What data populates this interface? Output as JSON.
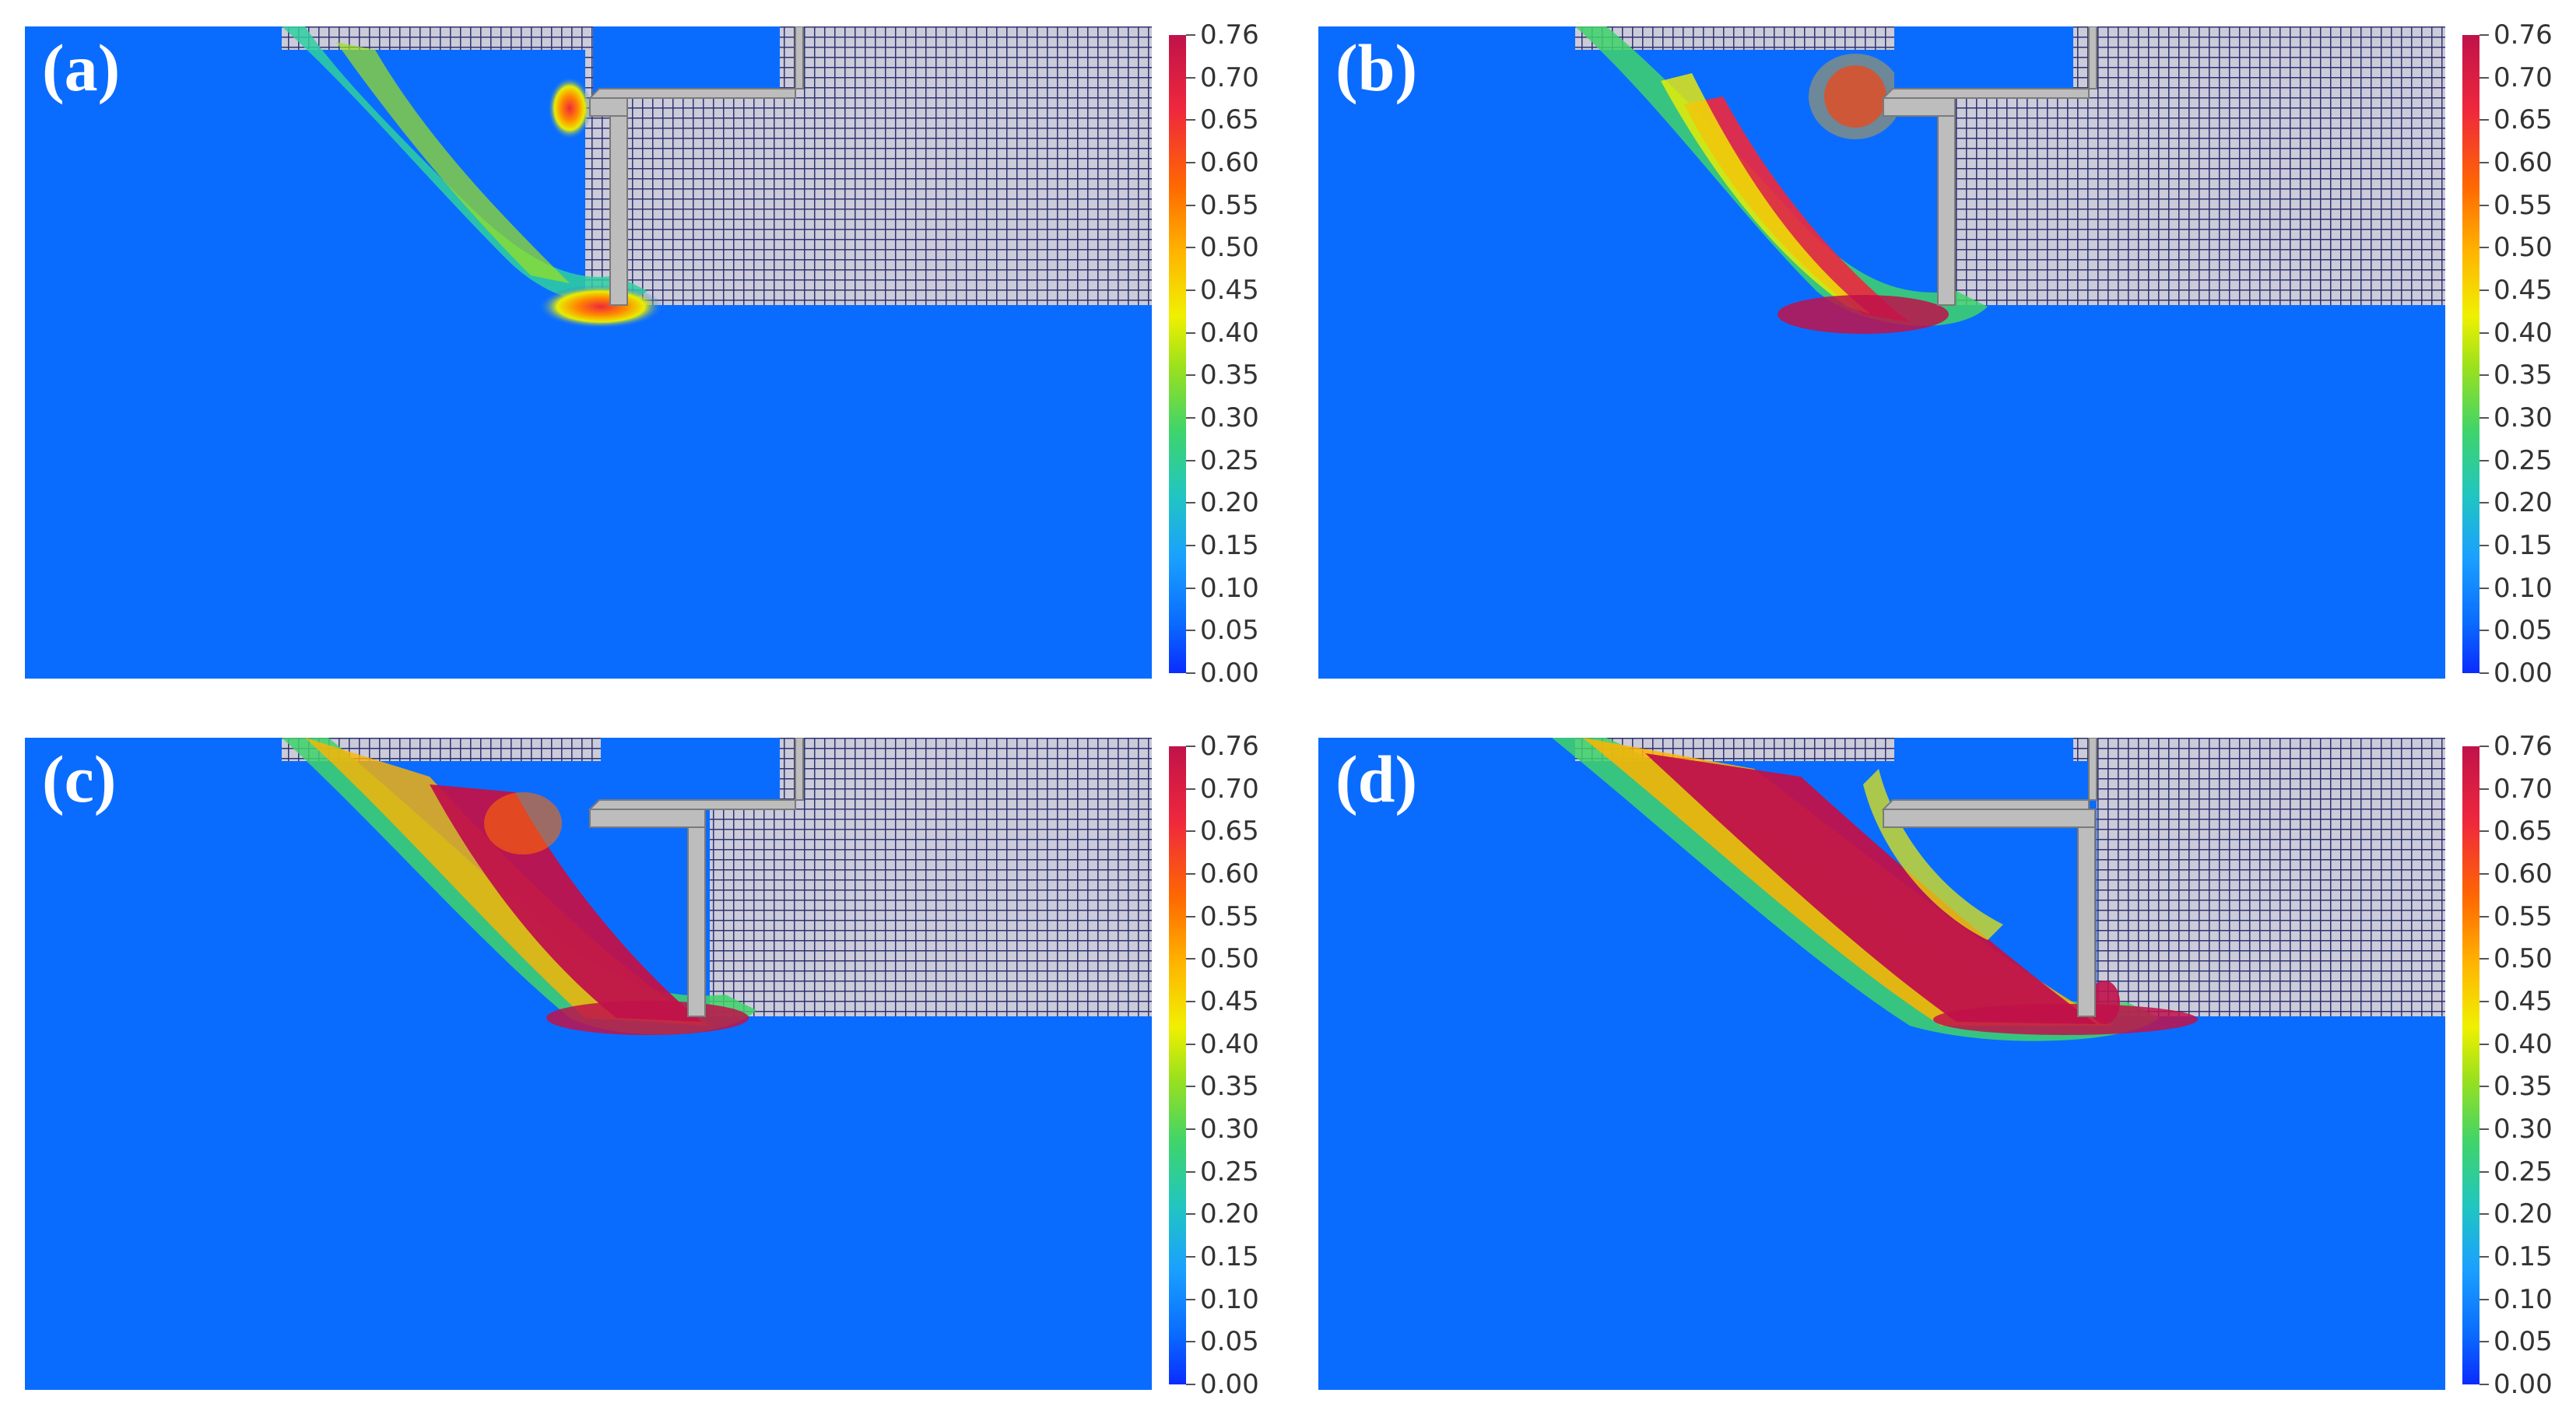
{
  "colors": {
    "background_field": "#0a6cff",
    "mesh": "#2e3270",
    "mesh_fill": "#c9c9d8",
    "wall": "#bdbdbd",
    "wall_edge": "#7a7a7a"
  },
  "colorbar": {
    "ticks": [
      "0.76",
      "0.70",
      "0.65",
      "0.60",
      "0.55",
      "0.50",
      "0.45",
      "0.40",
      "0.35",
      "0.30",
      "0.25",
      "0.20",
      "0.15",
      "0.10",
      "0.05",
      "0.00"
    ],
    "stops": [
      "#0a2cff",
      "#0a6cff",
      "#1aa0ff",
      "#21c6c0",
      "#3fd46a",
      "#9be11c",
      "#f0f000",
      "#ffb400",
      "#ff6a00",
      "#f0283c",
      "#c0124a"
    ]
  },
  "panels": [
    {
      "label": "(a)"
    },
    {
      "label": "(b)"
    },
    {
      "label": "(c)"
    },
    {
      "label": "(d)"
    }
  ]
}
